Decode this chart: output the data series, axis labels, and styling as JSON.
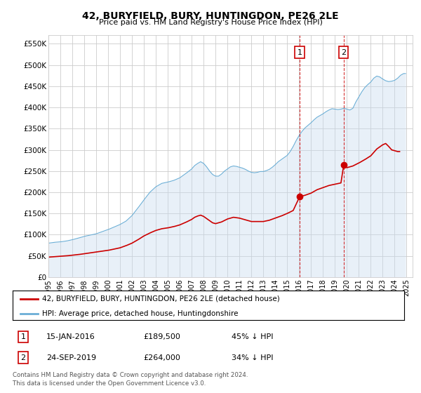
{
  "title": "42, BURYFIELD, BURY, HUNTINGDON, PE26 2LE",
  "subtitle": "Price paid vs. HM Land Registry's House Price Index (HPI)",
  "xlim_start": 1995.0,
  "xlim_end": 2025.5,
  "ylim": [
    0,
    570000
  ],
  "yticks": [
    0,
    50000,
    100000,
    150000,
    200000,
    250000,
    300000,
    350000,
    400000,
    450000,
    500000,
    550000
  ],
  "ytick_labels": [
    "£0",
    "£50K",
    "£100K",
    "£150K",
    "£200K",
    "£250K",
    "£300K",
    "£350K",
    "£400K",
    "£450K",
    "£500K",
    "£550K"
  ],
  "xticks": [
    1995,
    1996,
    1997,
    1998,
    1999,
    2000,
    2001,
    2002,
    2003,
    2004,
    2005,
    2006,
    2007,
    2008,
    2009,
    2010,
    2011,
    2012,
    2013,
    2014,
    2015,
    2016,
    2017,
    2018,
    2019,
    2020,
    2021,
    2022,
    2023,
    2024,
    2025
  ],
  "hpi_color": "#6baed6",
  "hpi_fill_color": "#c6dbef",
  "price_color": "#cc0000",
  "marker_color": "#cc0000",
  "vline_color": "#cc0000",
  "grid_color": "#cccccc",
  "bg_color": "#ffffff",
  "point1_x": 2016.04,
  "point1_y": 189500,
  "point2_x": 2019.73,
  "point2_y": 264000,
  "legend_line1": "42, BURYFIELD, BURY, HUNTINGDON, PE26 2LE (detached house)",
  "legend_line2": "HPI: Average price, detached house, Huntingdonshire",
  "table_row1": [
    "1",
    "15-JAN-2016",
    "£189,500",
    "45% ↓ HPI"
  ],
  "table_row2": [
    "2",
    "24-SEP-2019",
    "£264,000",
    "34% ↓ HPI"
  ],
  "footer1": "Contains HM Land Registry data © Crown copyright and database right 2024.",
  "footer2": "This data is licensed under the Open Government Licence v3.0."
}
